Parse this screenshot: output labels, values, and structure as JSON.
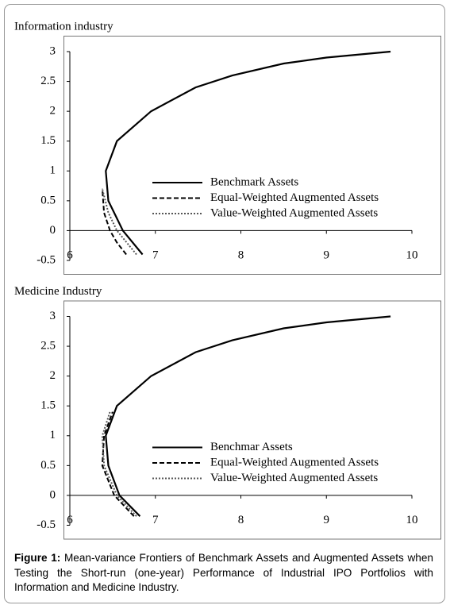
{
  "chart_data": [
    {
      "type": "line",
      "title": "Information industry",
      "xlim": [
        6,
        10
      ],
      "xticks": [
        6,
        7,
        8,
        9,
        10
      ],
      "ylim": [
        -0.5,
        3
      ],
      "yticks": [
        -0.5,
        0,
        0.5,
        1,
        1.5,
        2,
        2.5,
        3
      ],
      "legend": "right",
      "series": [
        {
          "name": "Benchmark Assets",
          "color": "#000000",
          "dash": "solid",
          "x": [
            6.85,
            6.62,
            6.45,
            6.42,
            6.55,
            6.95,
            7.47,
            7.9,
            8.5,
            9.0,
            9.75
          ],
          "values": [
            -0.4,
            0,
            0.5,
            1,
            1.5,
            2,
            2.4,
            2.6,
            2.8,
            2.9,
            3
          ]
        },
        {
          "name": "Equal-Weighted Augmented Assets",
          "color": "#000000",
          "dash": "dashed",
          "x": [
            6.66,
            6.55,
            6.47,
            6.4,
            6.38
          ],
          "values": [
            -0.4,
            -0.2,
            0,
            0.3,
            0.7
          ]
        },
        {
          "name": "Value-Weighted Augmented Assets",
          "color": "#555555",
          "dash": "dotted",
          "x": [
            6.78,
            6.55,
            6.45,
            6.38
          ],
          "values": [
            -0.4,
            0,
            0.3,
            0.7
          ]
        }
      ]
    },
    {
      "type": "line",
      "title": "Medicine Industry",
      "xlim": [
        6,
        10
      ],
      "xticks": [
        6,
        7,
        8,
        9,
        10
      ],
      "ylim": [
        -0.5,
        3
      ],
      "yticks": [
        -0.5,
        0,
        0.5,
        1,
        1.5,
        2,
        2.5,
        3
      ],
      "legend": "right",
      "series": [
        {
          "name": "Benchmar Assets",
          "color": "#000000",
          "dash": "solid",
          "x": [
            6.82,
            6.58,
            6.45,
            6.42,
            6.55,
            6.95,
            7.47,
            7.9,
            8.5,
            9.0,
            9.75
          ],
          "values": [
            -0.35,
            0,
            0.5,
            1,
            1.5,
            2,
            2.4,
            2.6,
            2.8,
            2.9,
            3
          ]
        },
        {
          "name": "Equal-Weighted Augmented Assets",
          "color": "#000000",
          "dash": "dashed",
          "x": [
            6.75,
            6.52,
            6.38,
            6.4,
            6.5
          ],
          "values": [
            -0.35,
            0,
            0.5,
            1,
            1.4
          ]
        },
        {
          "name": "Value-Weighted Augmented Assets",
          "color": "#555555",
          "dash": "dotted",
          "x": [
            6.78,
            6.55,
            6.4,
            6.38,
            6.47
          ],
          "values": [
            -0.35,
            0,
            0.5,
            1,
            1.4
          ]
        }
      ]
    }
  ],
  "figure": {
    "label": "Figure 1:",
    "caption": "Mean-variance Frontiers of Benchmark Assets and Augmented Assets when Testing the Short-run (one-year) Performance of Industrial IPO Portfolios with Information and Medicine Industry."
  }
}
